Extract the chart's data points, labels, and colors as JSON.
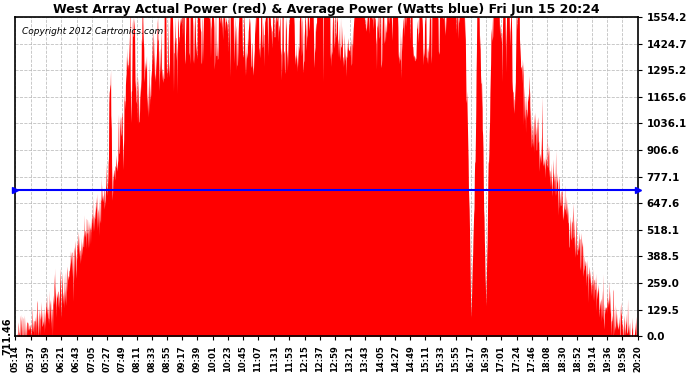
{
  "title": "West Array Actual Power (red) & Average Power (Watts blue) Fri Jun 15 20:24",
  "copyright": "Copyright 2012 Cartronics.com",
  "average_power": 711.46,
  "y_max": 1554.2,
  "y_min": 0.0,
  "yticks": [
    0.0,
    129.5,
    259.0,
    388.5,
    518.1,
    647.6,
    777.1,
    906.6,
    1036.1,
    1165.6,
    1295.2,
    1424.7,
    1554.2
  ],
  "bg_color": "#ffffff",
  "fill_color": "#ff0000",
  "line_color": "#0000ff",
  "grid_color": "#b0b0b0",
  "xtick_labels": [
    "05:14",
    "05:37",
    "05:59",
    "06:21",
    "06:43",
    "07:05",
    "07:27",
    "07:49",
    "08:11",
    "08:33",
    "08:55",
    "09:17",
    "09:39",
    "10:01",
    "10:23",
    "10:45",
    "11:07",
    "11:31",
    "11:53",
    "12:15",
    "12:37",
    "12:59",
    "13:21",
    "13:43",
    "14:05",
    "14:27",
    "14:49",
    "15:11",
    "15:33",
    "15:55",
    "16:17",
    "16:39",
    "17:01",
    "17:24",
    "17:46",
    "18:08",
    "18:30",
    "18:52",
    "19:14",
    "19:36",
    "19:58",
    "20:20"
  ],
  "start_hour": 5.233,
  "end_hour": 20.333,
  "peak_watts": 1554.2
}
